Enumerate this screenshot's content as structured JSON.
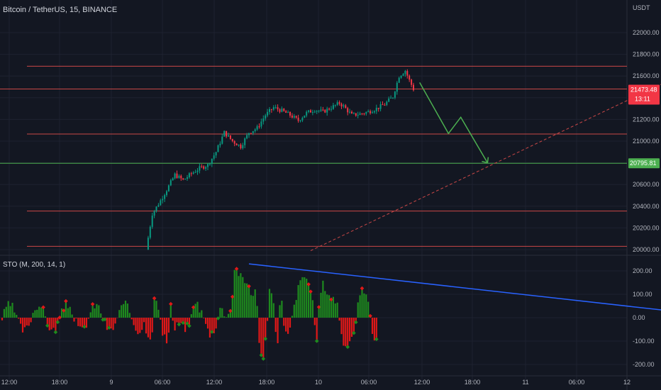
{
  "header": {
    "title": "Bitcoin / TetherUS, 15, BINANCE",
    "currency": "USDT"
  },
  "indicator": {
    "title": "STO (M, 200, 14, 1)"
  },
  "price_labels": {
    "current": "21473.48",
    "countdown": "13:11",
    "target": "20795.81"
  },
  "colors": {
    "background": "#131722",
    "grid": "#1e2230",
    "up": "#089981",
    "down": "#f23645",
    "hist_up": "#1e8a1e",
    "hist_down": "#e01818",
    "level_red": "#c94747",
    "level_green": "#4caf50",
    "projection": "#4caf50",
    "trendline": "#2962ff",
    "text": "#b2b5be"
  },
  "chart_data": [
    {
      "type": "candlestick",
      "title": "Bitcoin / TetherUS, 15, BINANCE",
      "unit": "USDT",
      "ylim": [
        20000,
        22200
      ],
      "y_ticks": [
        20000,
        20200,
        20400,
        20600,
        20800,
        21000,
        21200,
        21400,
        21600,
        21800,
        22000
      ],
      "y_tick_labels": [
        "20000.00",
        "20200.00",
        "20400.00",
        "20600.00",
        "20800.00",
        "21000.00",
        "21200.00",
        "21400.00",
        "21600.00",
        "21800.00",
        "22000.00"
      ],
      "x_tick_labels": [
        "12:00",
        "18:00",
        "9",
        "06:00",
        "12:00",
        "18:00",
        "10",
        "06:00",
        "12:00",
        "18:00",
        "11",
        "06:00",
        "12"
      ],
      "grid": true,
      "current_price": 21473.48,
      "price_path": [
        [
          0,
          20000
        ],
        [
          3,
          20330
        ],
        [
          6,
          20420
        ],
        [
          10,
          20550
        ],
        [
          14,
          20690
        ],
        [
          18,
          20640
        ],
        [
          22,
          20700
        ],
        [
          26,
          20750
        ],
        [
          30,
          20780
        ],
        [
          34,
          20900
        ],
        [
          38,
          21080
        ],
        [
          42,
          21000
        ],
        [
          46,
          20950
        ],
        [
          50,
          21080
        ],
        [
          54,
          21120
        ],
        [
          58,
          21240
        ],
        [
          62,
          21310
        ],
        [
          66,
          21280
        ],
        [
          70,
          21240
        ],
        [
          74,
          21190
        ],
        [
          78,
          21260
        ],
        [
          82,
          21290
        ],
        [
          86,
          21270
        ],
        [
          90,
          21310
        ],
        [
          94,
          21350
        ],
        [
          96,
          21320
        ],
        [
          100,
          21240
        ],
        [
          104,
          21250
        ],
        [
          108,
          21270
        ],
        [
          112,
          21300
        ],
        [
          116,
          21340
        ],
        [
          120,
          21410
        ],
        [
          123,
          21600
        ],
        [
          126,
          21650
        ],
        [
          128,
          21560
        ],
        [
          130,
          21480
        ]
      ],
      "horizontal_levels": [
        {
          "price": 21690,
          "color": "red"
        },
        {
          "price": 21480,
          "color": "red"
        },
        {
          "price": 21065,
          "color": "red"
        },
        {
          "price": 20795.81,
          "color": "green"
        },
        {
          "price": 20355,
          "color": "red"
        },
        {
          "price": 20030,
          "color": "red"
        }
      ],
      "projection_path": [
        [
          133,
          21540
        ],
        [
          147,
          21070
        ],
        [
          153,
          21220
        ],
        [
          166,
          20800
        ]
      ],
      "dashed_trendline": [
        [
          80,
          19990
        ],
        [
          269,
          21690
        ]
      ]
    },
    {
      "type": "bar",
      "title": "STO (M, 200, 14, 1)",
      "ylim": [
        -220,
        240
      ],
      "y_ticks": [
        200,
        100,
        0,
        -100,
        -200
      ],
      "y_tick_labels": [
        "200.00",
        "100.00",
        "0.00",
        "-100.00",
        "-200.00"
      ],
      "grid": true,
      "histogram_profile": [
        [
          0,
          -50
        ],
        [
          3,
          -95
        ],
        [
          5,
          110
        ],
        [
          7,
          30
        ],
        [
          9,
          -60
        ],
        [
          12,
          -120
        ],
        [
          14,
          60
        ],
        [
          16,
          -60
        ],
        [
          18,
          -20
        ],
        [
          20,
          -30
        ],
        [
          22,
          -45
        ],
        [
          24,
          -35
        ],
        [
          26,
          20
        ],
        [
          28,
          80
        ],
        [
          30,
          40
        ],
        [
          32,
          15
        ],
        [
          34,
          -40
        ],
        [
          36,
          -70
        ],
        [
          38,
          -60
        ],
        [
          40,
          -20
        ],
        [
          42,
          50
        ],
        [
          44,
          15
        ],
        [
          46,
          20
        ],
        [
          48,
          30
        ],
        [
          50,
          220
        ],
        [
          53,
          180
        ],
        [
          56,
          150
        ],
        [
          58,
          140
        ],
        [
          60,
          90
        ],
        [
          62,
          120
        ],
        [
          64,
          -110
        ],
        [
          66,
          -190
        ],
        [
          68,
          -45
        ],
        [
          70,
          140
        ],
        [
          72,
          50
        ],
        [
          74,
          -130
        ],
        [
          76,
          120
        ],
        [
          78,
          -60
        ],
        [
          80,
          -80
        ],
        [
          82,
          -20
        ],
        [
          84,
          70
        ],
        [
          86,
          130
        ],
        [
          88,
          170
        ],
        [
          90,
          180
        ],
        [
          92,
          140
        ],
        [
          94,
          60
        ],
        [
          96,
          -120
        ],
        [
          98,
          90
        ],
        [
          100,
          150
        ],
        [
          102,
          110
        ],
        [
          104,
          90
        ],
        [
          106,
          80
        ],
        [
          108,
          60
        ],
        [
          110,
          -50
        ],
        [
          112,
          -150
        ],
        [
          114,
          -110
        ],
        [
          116,
          -80
        ],
        [
          118,
          -40
        ],
        [
          120,
          80
        ],
        [
          122,
          110
        ],
        [
          124,
          90
        ],
        [
          126,
          60
        ],
        [
          128,
          -80
        ],
        [
          130,
          -90
        ]
      ],
      "trendline": [
        [
          50,
          230
        ],
        [
          269,
          15
        ]
      ]
    }
  ]
}
